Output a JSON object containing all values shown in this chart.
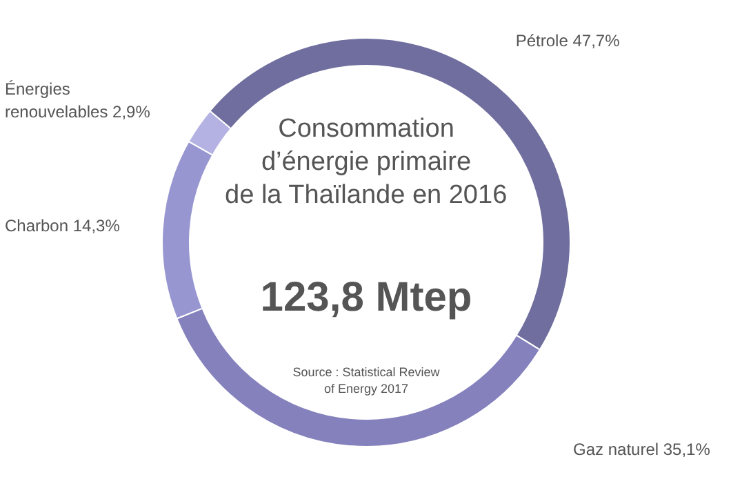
{
  "chart_data": {
    "type": "donut",
    "title": "Consommation\nd’énergie primaire\nde la Thaïlande en 2016",
    "subtitle": "123,8 Mtep",
    "categories": [
      "Pétrole",
      "Gaz naturel",
      "Charbon",
      "Énergies renouvelables"
    ],
    "values": [
      47.7,
      35.1,
      14.3,
      2.9
    ],
    "colors": [
      "#6f6e9e",
      "#8481bd",
      "#9896d0",
      "#b4b2e2"
    ],
    "value_labels": [
      "47,7%",
      "35,1%",
      "14,3%",
      "2,9%"
    ],
    "annotations": [
      "Source : Statistical Review of Energy 2017"
    ]
  }
}
